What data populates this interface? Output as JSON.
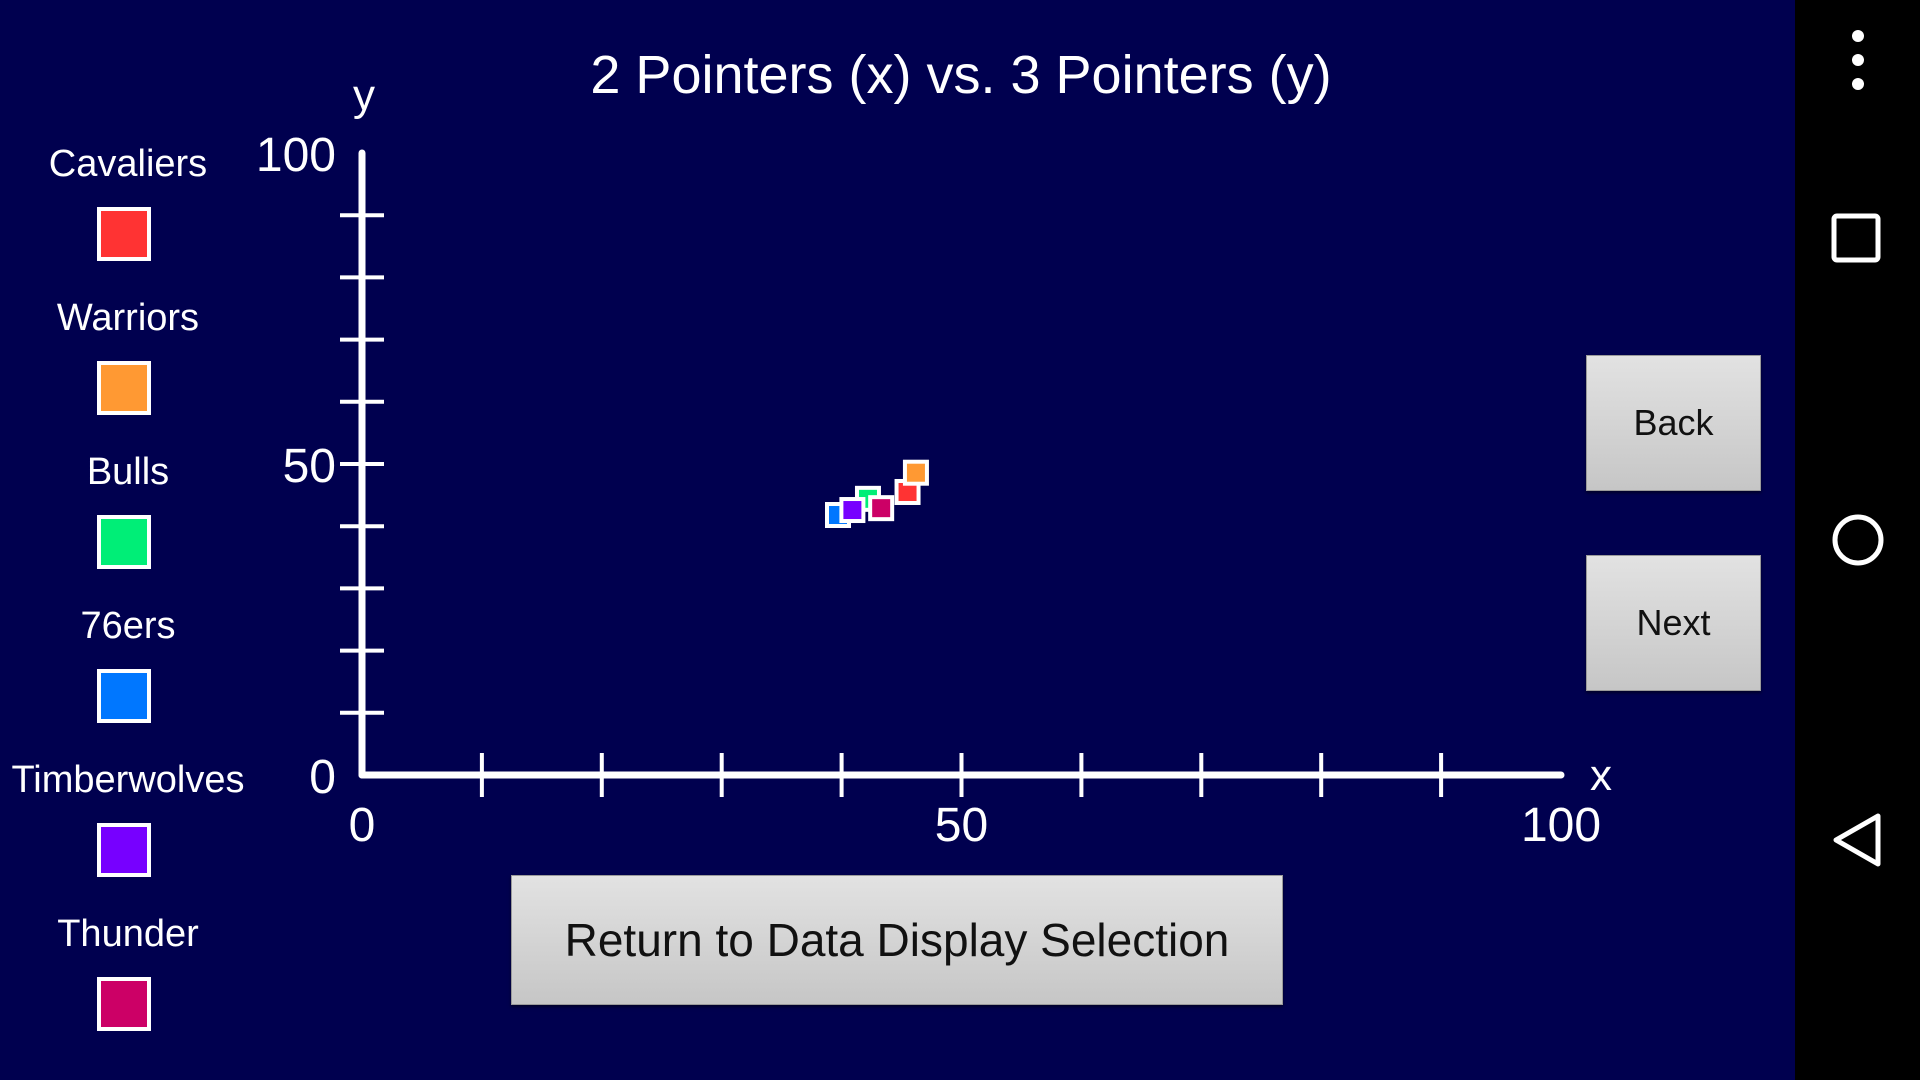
{
  "legend": {
    "items": [
      {
        "label": "Cavaliers",
        "color": "#ff3333"
      },
      {
        "label": "Warriors",
        "color": "#ff9933"
      },
      {
        "label": "Bulls",
        "color": "#00ee77"
      },
      {
        "label": "76ers",
        "color": "#0077ff"
      },
      {
        "label": "Timberwolves",
        "color": "#7700ff"
      },
      {
        "label": "Thunder",
        "color": "#cc0066"
      }
    ]
  },
  "chart_data": {
    "type": "scatter",
    "title": "2 Pointers (x) vs. 3 Pointers (y)",
    "xlabel": "x",
    "ylabel": "y",
    "xlim": [
      0,
      100
    ],
    "ylim": [
      0,
      100
    ],
    "x_ticks": [
      0,
      10,
      20,
      30,
      40,
      50,
      60,
      70,
      80,
      90,
      100
    ],
    "y_ticks": [
      0,
      10,
      20,
      30,
      40,
      50,
      60,
      70,
      80,
      90,
      100
    ],
    "x_tick_labels": [
      "0",
      "50",
      "100"
    ],
    "y_tick_labels": [
      "0",
      "50",
      "100"
    ],
    "grid": false,
    "legend_position": "left",
    "series": [
      {
        "team": "Cavaliers",
        "color": "#ff3333",
        "x": 45.5,
        "y": 45.5
      },
      {
        "team": "Warriors",
        "color": "#ff9933",
        "x": 46.2,
        "y": 48.6
      },
      {
        "team": "Bulls",
        "color": "#00ee77",
        "x": 42.2,
        "y": 44.4
      },
      {
        "team": "76ers",
        "color": "#0077ff",
        "x": 39.7,
        "y": 41.8
      },
      {
        "team": "Timberwolves",
        "color": "#7700ff",
        "x": 40.9,
        "y": 42.6
      },
      {
        "team": "Thunder",
        "color": "#cc0066",
        "x": 43.3,
        "y": 42.9
      }
    ]
  },
  "buttons": {
    "back": "Back",
    "next": "Next",
    "return": "Return to Data Display Selection"
  },
  "navbar": {
    "icons": [
      "overflow-menu-icon",
      "recent-apps-icon",
      "home-icon",
      "back-icon"
    ]
  }
}
